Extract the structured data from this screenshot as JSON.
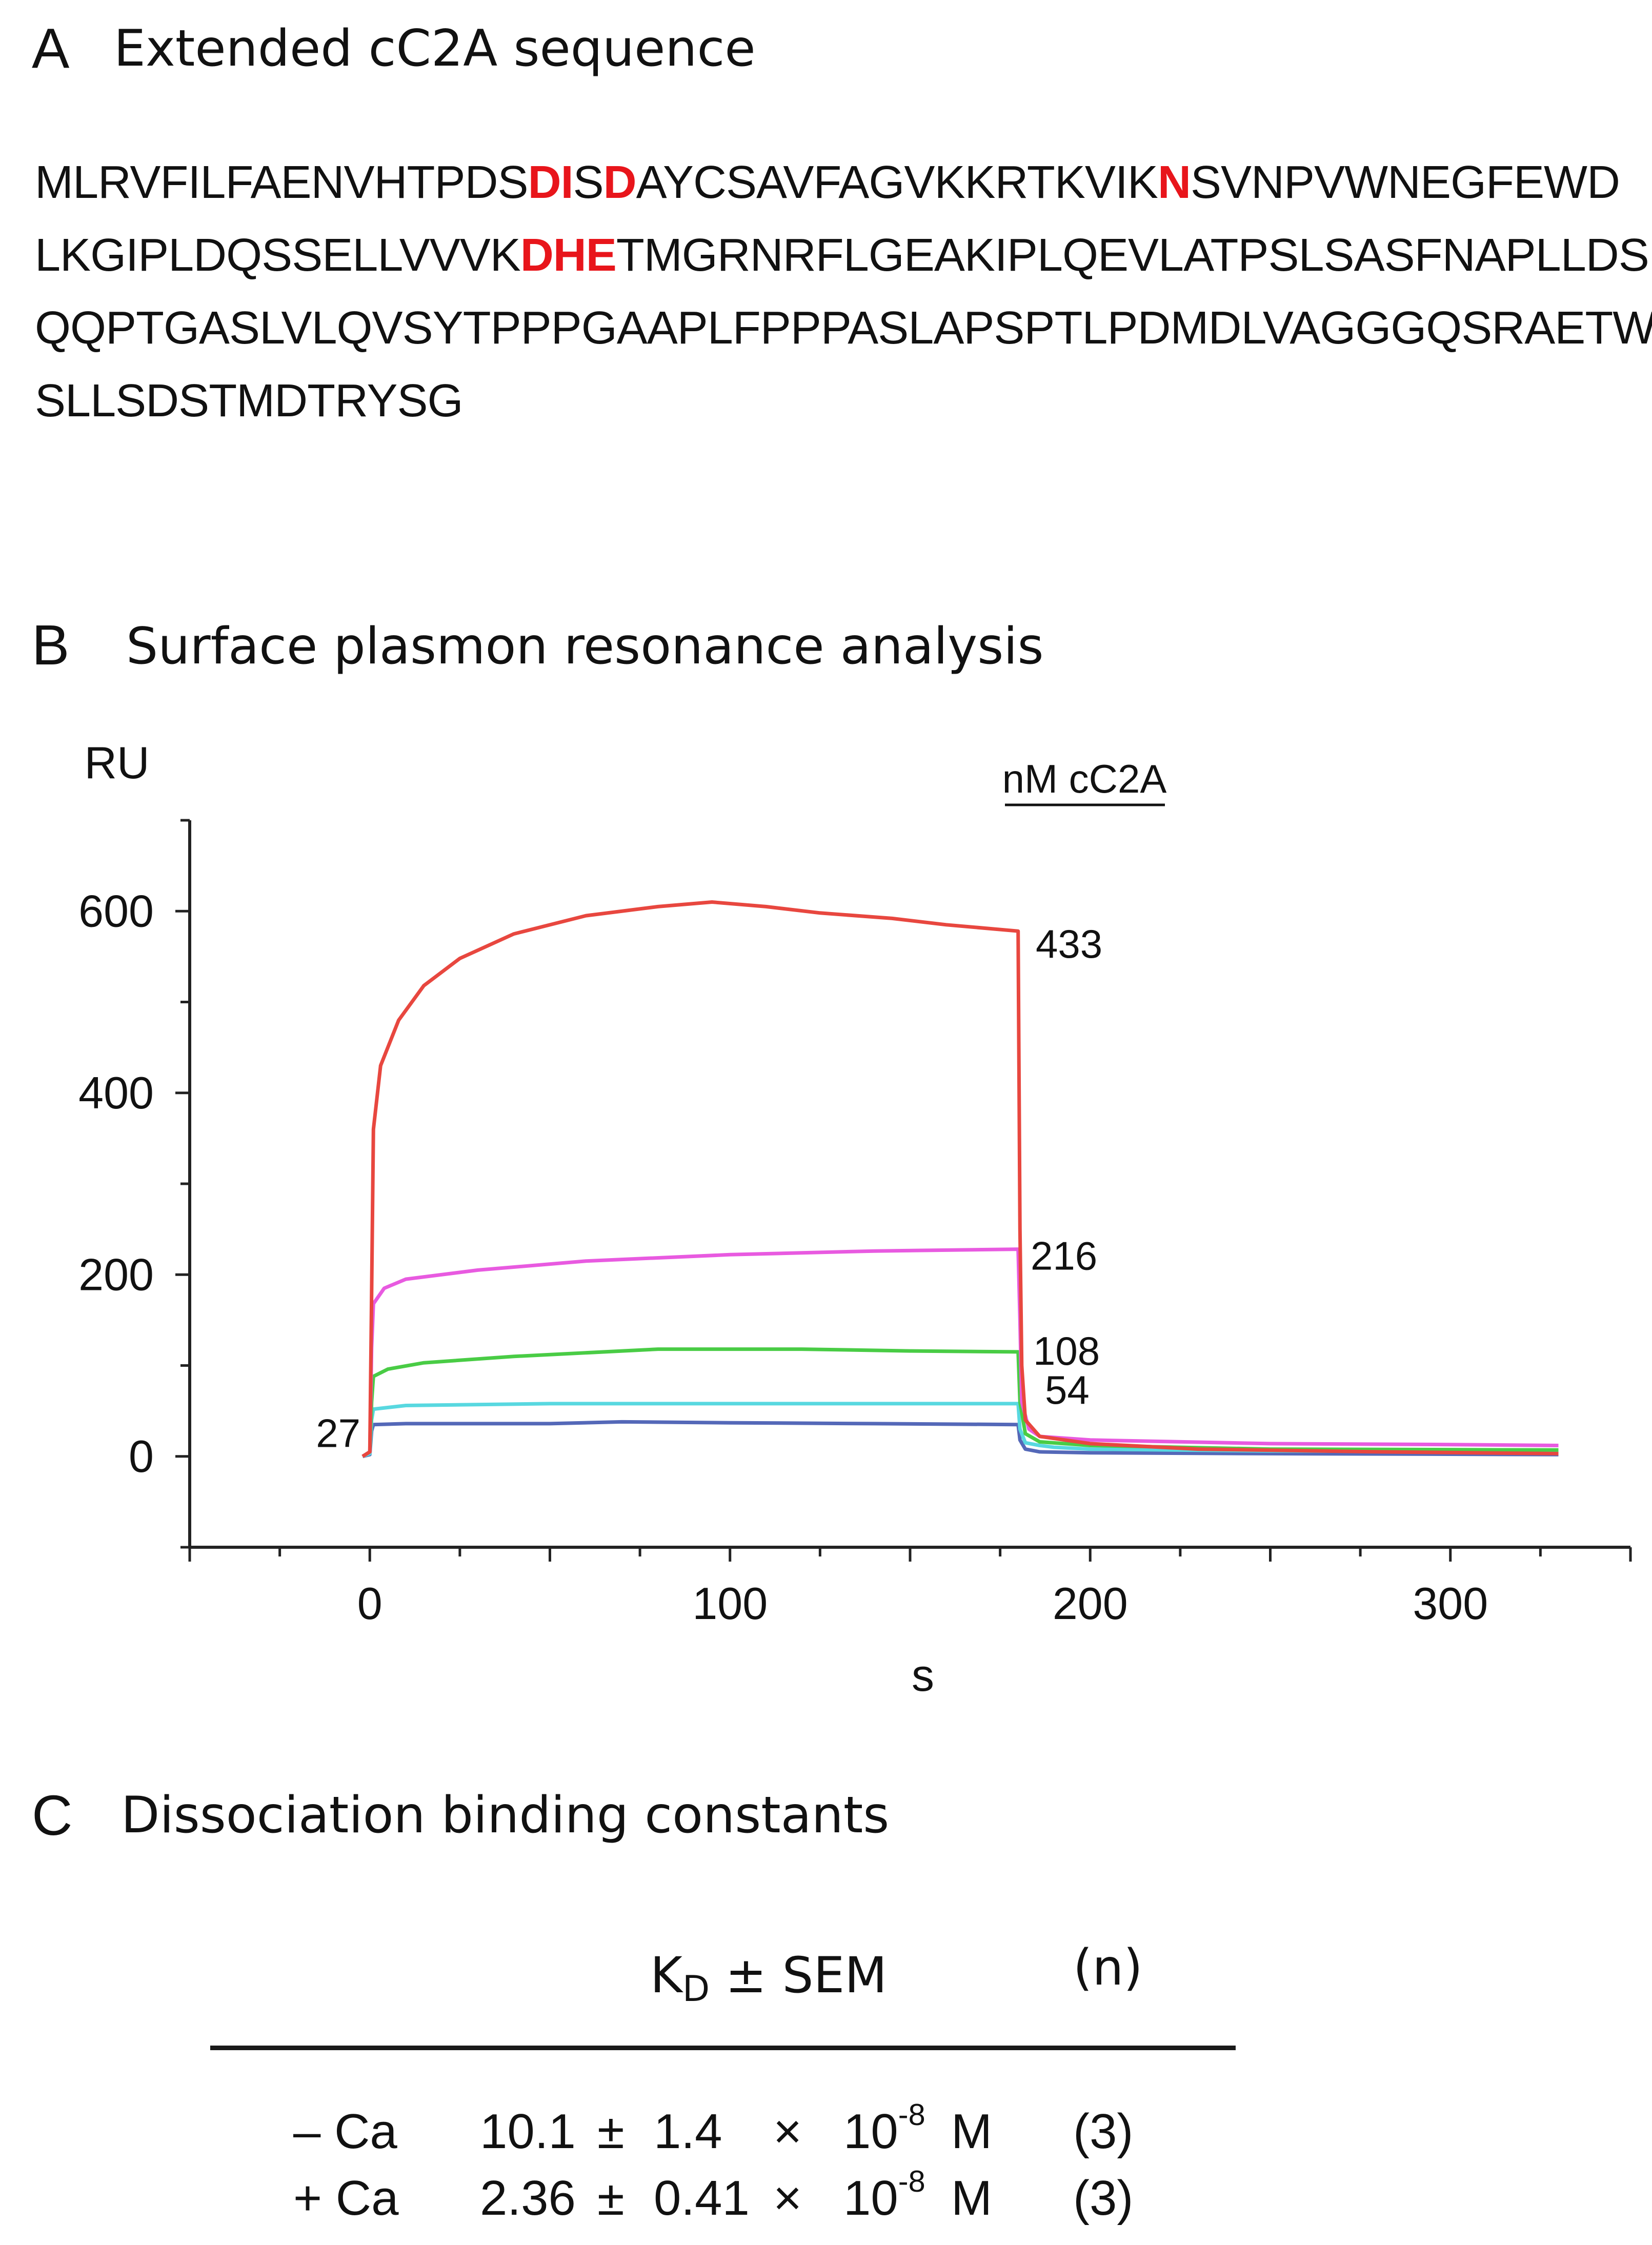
{
  "panelA": {
    "letter": "A",
    "title": "Extended cC2A sequence",
    "lines": [
      [
        {
          "t": "MLRVFILFAENVHTPDS",
          "hl": false
        },
        {
          "t": "DI",
          "hl": true
        },
        {
          "t": "S",
          "hl": false
        },
        {
          "t": "D",
          "hl": true
        },
        {
          "t": "AYCSAVFAGVKKRTKVIK",
          "hl": false
        },
        {
          "t": "N",
          "hl": true
        },
        {
          "t": "SVNPVWNEGFEWD",
          "hl": false
        }
      ],
      [
        {
          "t": "LKGIPLDQSSELLVVVK",
          "hl": false
        },
        {
          "t": "DHE",
          "hl": true
        },
        {
          "t": "TMGRNRFLGEAKIPLQEVLATPSLSASFNAPLLDSK",
          "hl": false
        }
      ],
      [
        {
          "t": "QQPTGASLVLQVSYTPPPGAAPLFPPPASLAPSPTLPDMDLVAGGGQSRAETW",
          "hl": false
        }
      ],
      [
        {
          "t": "SLLSDSTMDTRYSG",
          "hl": false
        }
      ]
    ],
    "highlight_color": "#e8151b"
  },
  "panelB": {
    "letter": "B",
    "title": "Surface plasmon resonance analysis"
  },
  "chart_data": {
    "type": "line",
    "title": "",
    "xlabel": "s",
    "ylabel": "RU",
    "xlim": [
      -50,
      350
    ],
    "ylim": [
      -100,
      700
    ],
    "xticks": [
      0,
      100,
      200,
      300
    ],
    "yticks": [
      0,
      200,
      400,
      600
    ],
    "legend_title": "nM cC2A",
    "series": [
      {
        "name": "433",
        "color": "#e8473f",
        "points": [
          [
            -2,
            0
          ],
          [
            0,
            5
          ],
          [
            0.5,
            180
          ],
          [
            1,
            360
          ],
          [
            3,
            430
          ],
          [
            8,
            480
          ],
          [
            15,
            518
          ],
          [
            25,
            548
          ],
          [
            40,
            575
          ],
          [
            60,
            595
          ],
          [
            80,
            605
          ],
          [
            95,
            610
          ],
          [
            110,
            605
          ],
          [
            125,
            598
          ],
          [
            145,
            592
          ],
          [
            160,
            585
          ],
          [
            180,
            578
          ],
          [
            180.5,
            250
          ],
          [
            181,
            100
          ],
          [
            182,
            40
          ],
          [
            186,
            22
          ],
          [
            200,
            14
          ],
          [
            230,
            8
          ],
          [
            280,
            5
          ],
          [
            330,
            3
          ]
        ]
      },
      {
        "name": "216",
        "color": "#e85ae0",
        "points": [
          [
            -2,
            0
          ],
          [
            0,
            5
          ],
          [
            0.5,
            120
          ],
          [
            1,
            168
          ],
          [
            4,
            185
          ],
          [
            10,
            195
          ],
          [
            30,
            205
          ],
          [
            60,
            215
          ],
          [
            100,
            222
          ],
          [
            140,
            226
          ],
          [
            180,
            228
          ],
          [
            180.5,
            150
          ],
          [
            181,
            60
          ],
          [
            183,
            30
          ],
          [
            186,
            22
          ],
          [
            200,
            18
          ],
          [
            250,
            14
          ],
          [
            300,
            13
          ],
          [
            330,
            12
          ]
        ]
      },
      {
        "name": "108",
        "color": "#49cc45",
        "points": [
          [
            -2,
            0
          ],
          [
            0,
            5
          ],
          [
            0.5,
            60
          ],
          [
            1,
            88
          ],
          [
            5,
            96
          ],
          [
            15,
            103
          ],
          [
            40,
            110
          ],
          [
            80,
            118
          ],
          [
            120,
            118
          ],
          [
            150,
            116
          ],
          [
            180,
            115
          ],
          [
            180.5,
            60
          ],
          [
            182,
            25
          ],
          [
            186,
            16
          ],
          [
            200,
            12
          ],
          [
            250,
            8
          ],
          [
            330,
            7
          ]
        ]
      },
      {
        "name": "54",
        "color": "#58d8e0",
        "points": [
          [
            -2,
            0
          ],
          [
            0,
            3
          ],
          [
            0.5,
            40
          ],
          [
            1,
            52
          ],
          [
            10,
            56
          ],
          [
            50,
            58
          ],
          [
            120,
            58
          ],
          [
            180,
            58
          ],
          [
            180.5,
            30
          ],
          [
            182,
            15
          ],
          [
            186,
            12
          ],
          [
            190,
            10
          ],
          [
            200,
            8
          ],
          [
            250,
            6
          ],
          [
            330,
            5
          ]
        ]
      },
      {
        "name": "27",
        "color": "#5468b8",
        "points": [
          [
            -2,
            0
          ],
          [
            0,
            2
          ],
          [
            0.5,
            28
          ],
          [
            1,
            35
          ],
          [
            10,
            36
          ],
          [
            50,
            36
          ],
          [
            70,
            38
          ],
          [
            100,
            37
          ],
          [
            140,
            36
          ],
          [
            180,
            35
          ],
          [
            180.5,
            18
          ],
          [
            182,
            8
          ],
          [
            186,
            5
          ],
          [
            200,
            4
          ],
          [
            250,
            3
          ],
          [
            330,
            2
          ]
        ]
      }
    ],
    "label_colors": {
      "axis": "#222222"
    }
  },
  "panelC": {
    "letter": "C",
    "title": "Dissociation binding constants",
    "header": {
      "kd_main": "K",
      "kd_sub": "D",
      "kd_rest": " ± SEM",
      "n": "(n)"
    },
    "rows": [
      {
        "cond": "– Ca",
        "value": "10.1",
        "pm": "±",
        "err": "1.4",
        "times": "×",
        "base": "10",
        "exp": "-8",
        "unit": "M",
        "n": "(3)"
      },
      {
        "cond": "+ Ca",
        "value": "2.36",
        "pm": "±",
        "err": "0.41",
        "times": "×",
        "base": "10",
        "exp": "-8",
        "unit": "M",
        "n": "(3)"
      }
    ]
  }
}
